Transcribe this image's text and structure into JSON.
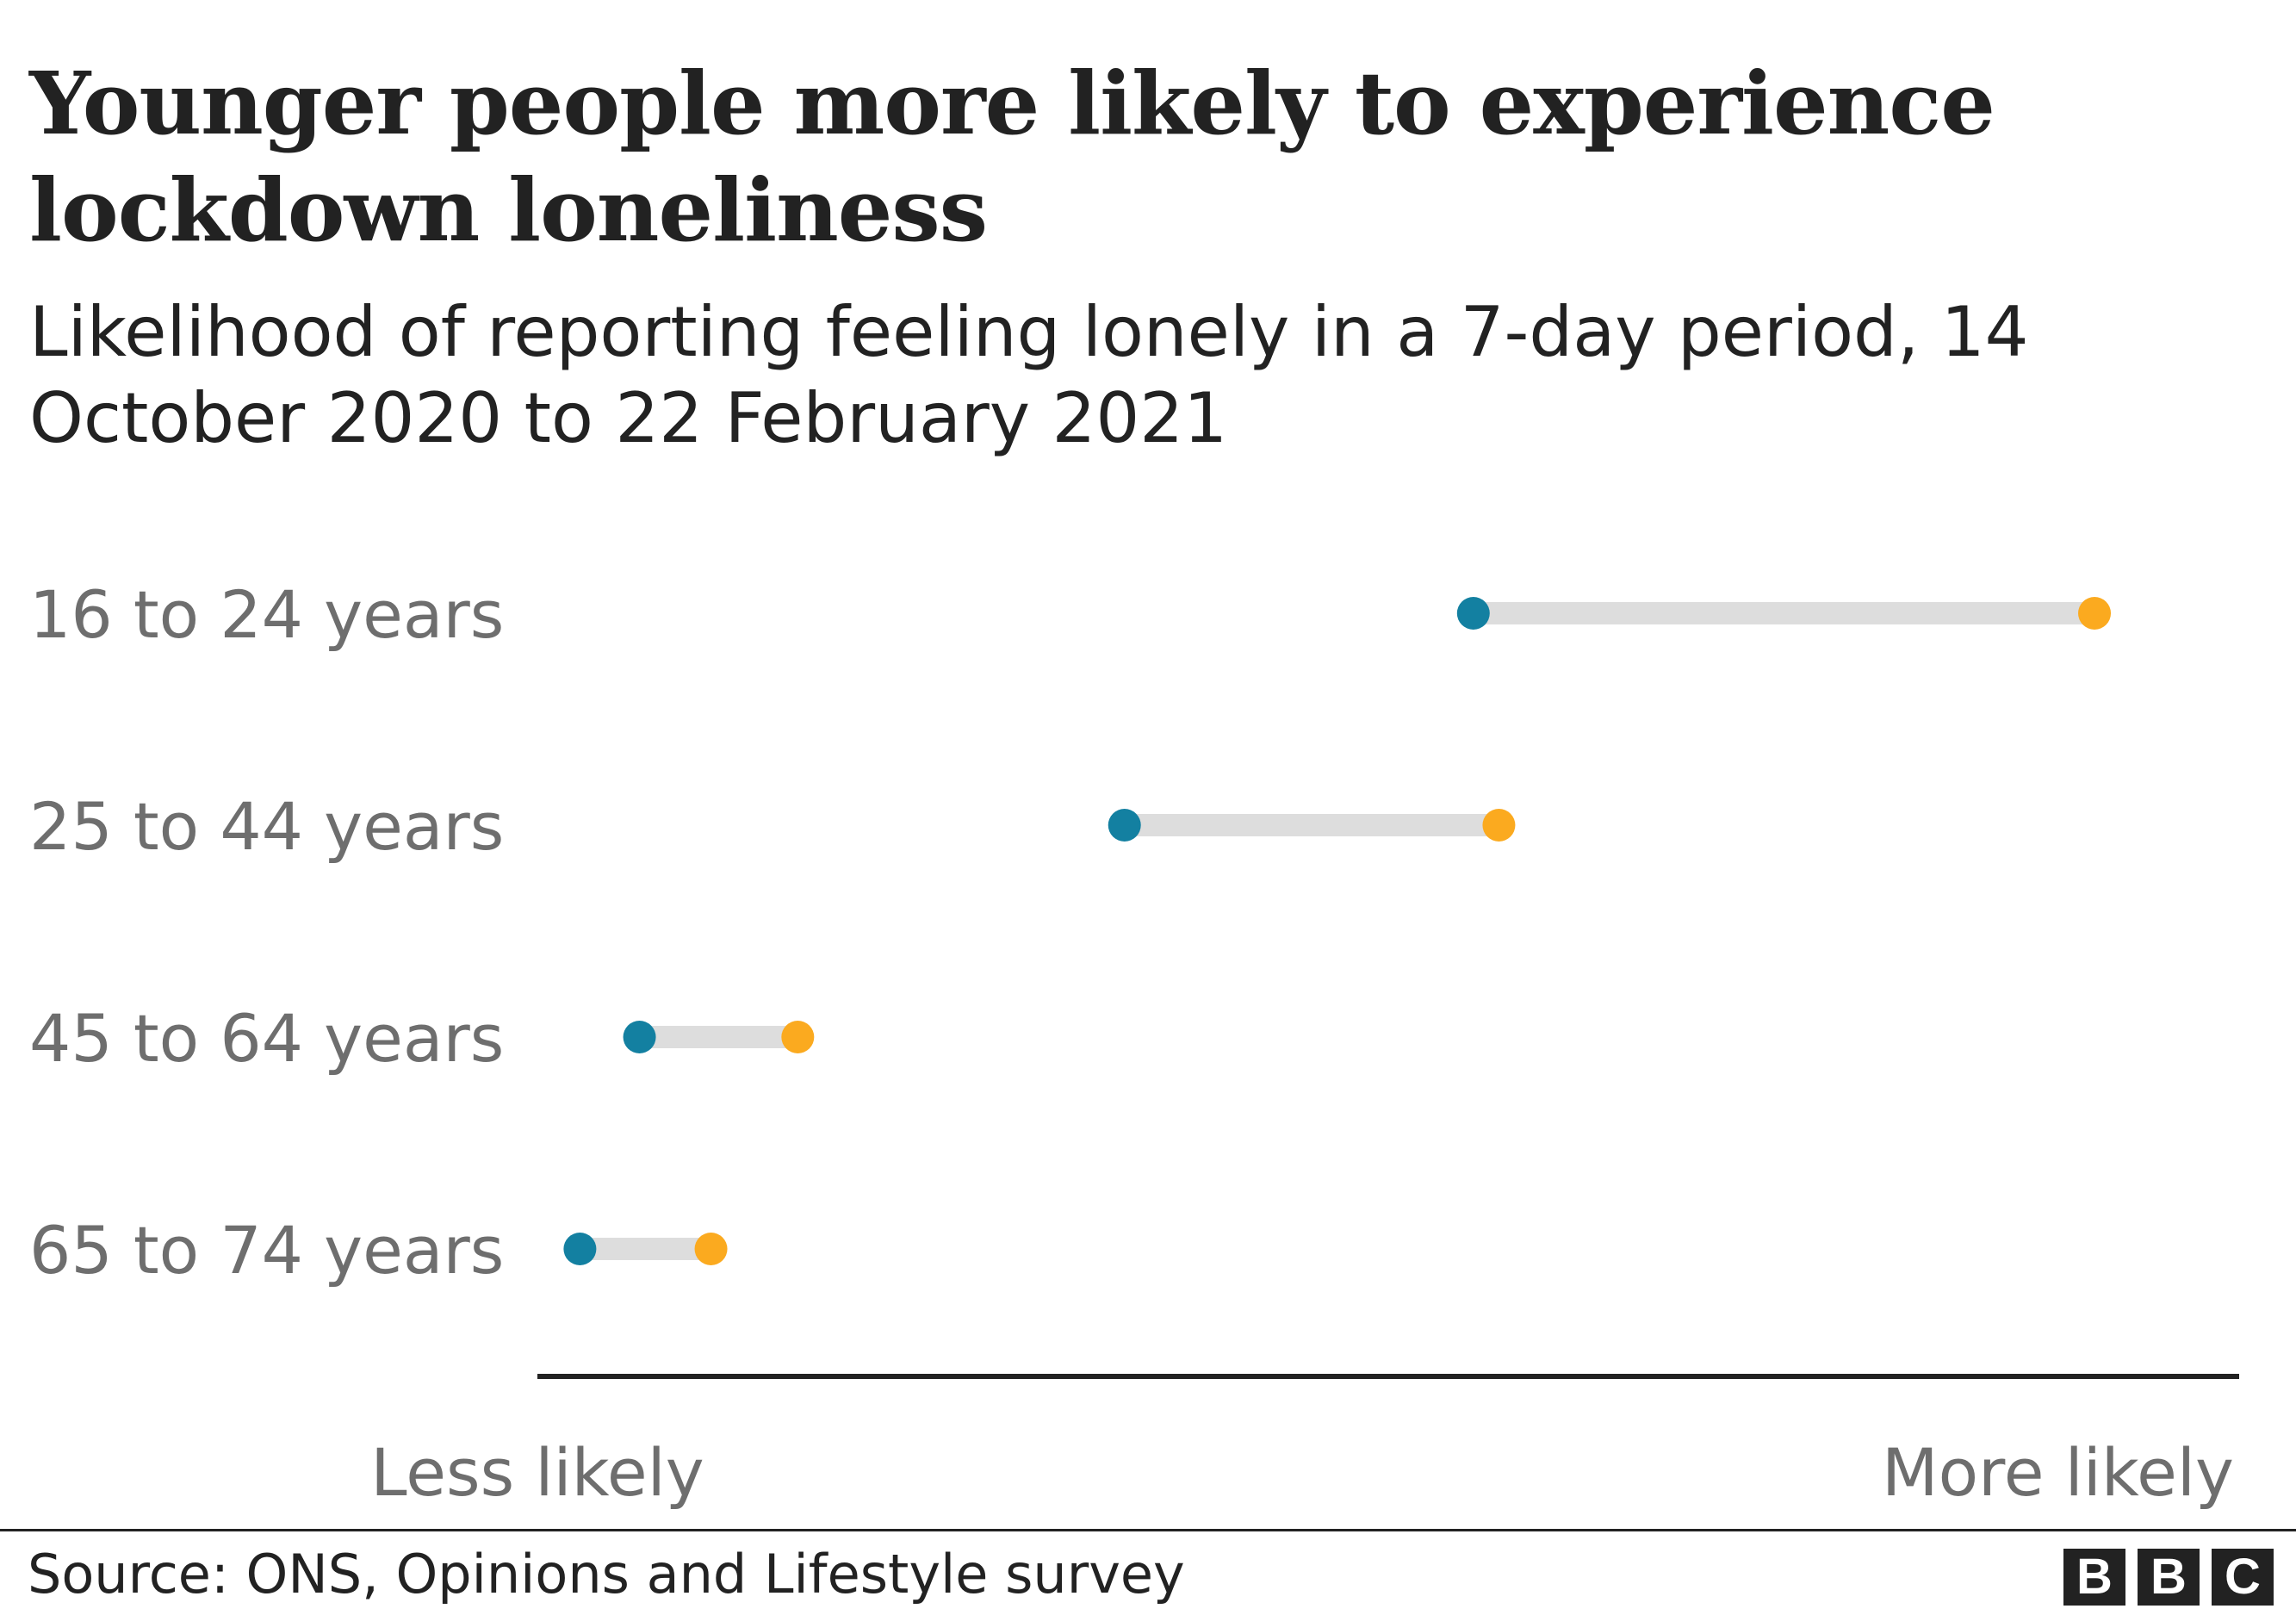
{
  "title": "Younger people more likely to experience lockdown loneliness",
  "subtitle": "Likelihood of reporting feeling lonely in a 7-day period, 14 October 2020 to 22 February 2021",
  "source": "Source: ONS, Opinions and Lifestyle survey",
  "logo": [
    "B",
    "B",
    "C"
  ],
  "colors": {
    "start_dot": "#1380a1",
    "end_dot": "#fbaa1f",
    "range_bar": "#dddddd",
    "axis": "#222222",
    "label_text": "#6e6e6e"
  },
  "chart_data": {
    "type": "dumbbell",
    "x_axis": {
      "low_label": "Less likely",
      "high_label": "More likely",
      "range": [
        0,
        100
      ]
    },
    "categories": [
      "16 to 24 years",
      "25 to 44 years",
      "45 to 64 years",
      "65 to 74 years"
    ],
    "series": [
      {
        "values": [
          55,
          34.5,
          6,
          2.5
        ]
      },
      {
        "values": [
          91.5,
          56.5,
          15.3,
          10.2
        ]
      }
    ]
  }
}
